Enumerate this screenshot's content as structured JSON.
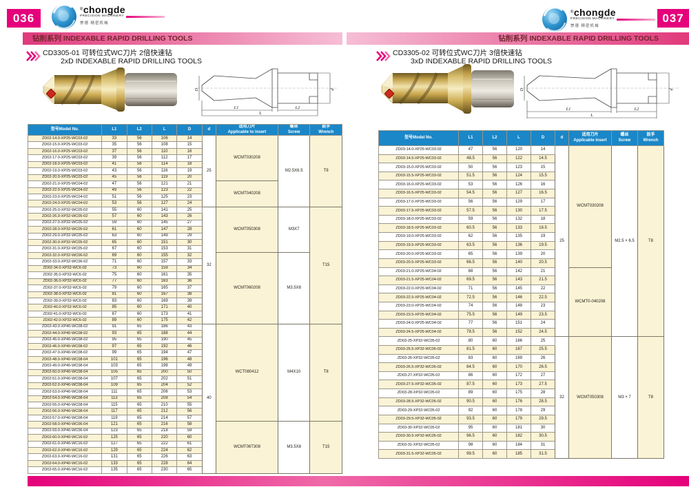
{
  "brand": {
    "name": "chongde",
    "reg": "®",
    "sub": "PRECISION MACHINERY",
    "zh": "崇德 精密机械"
  },
  "diagram": {
    "D": "D",
    "d": "d",
    "L1": "L1",
    "L2": "L2",
    "L": "L"
  },
  "colors": {
    "magenta": "#e5017b",
    "header_blue": "#1a87c8",
    "row_beige": "#fbf3d5"
  },
  "page_left": {
    "page_number": "036",
    "series_title": "钻削系列  INDEXABLE RAPID DRILLING TOOLS",
    "title_zh": "CD3305-01 可转位式WC刀片 2倍快速钻",
    "title_en": "2xD INDEXABLE  RAPID DRILLING TOOLS",
    "table": {
      "stripe": 0,
      "columns": [
        "型号Model No.",
        "L1",
        "L2",
        "L",
        "D",
        "d",
        "适用刀片|Applicable to insert",
        "螺丝|Screw",
        "扳手|Wrench"
      ],
      "rows": [
        [
          "ZD02-14.0-XP25-WC03-02",
          "33",
          "56",
          "106",
          "14"
        ],
        [
          "ZD02-15.0-XP25-WC03-02",
          "35",
          "56",
          "108",
          "15"
        ],
        [
          "ZD02-16.0-XP25-WC03-02",
          "37",
          "56",
          "110",
          "16"
        ],
        [
          "ZD02-17.0-XP25-WC03-02",
          "39",
          "56",
          "112",
          "17"
        ],
        [
          "ZD02-18.0-XP25-WC03-02",
          "41",
          "56",
          "114",
          "18"
        ],
        [
          "ZD02-19.0-XP25-WC03-02",
          "43",
          "56",
          "116",
          "19"
        ],
        [
          "ZD02-20.0-XP25-WC03-02",
          "45",
          "56",
          "119",
          "20"
        ],
        [
          "ZD02-21.0-XP25-WC04-02",
          "47",
          "56",
          "121",
          "21"
        ],
        [
          "ZD02-22.0-XP25-WC04-02",
          "49",
          "56",
          "123",
          "22"
        ],
        [
          "ZD02-23.0-XP25-WC04-02",
          "51",
          "56",
          "125",
          "23"
        ],
        [
          "ZD02-24.0-XP25-WC04-02",
          "53",
          "56",
          "127",
          "24"
        ],
        [
          "ZD02-25.0-XP32-WC05-02",
          "55",
          "60",
          "141",
          "25"
        ],
        [
          "ZD02-26.0-XP32-WC05-02",
          "57",
          "60",
          "143",
          "26"
        ],
        [
          "ZD02-27.0-XP32-WC05-02",
          "59",
          "60",
          "145",
          "27"
        ],
        [
          "ZD02-28.0-XP32-WC05-02",
          "61",
          "60",
          "147",
          "28"
        ],
        [
          "ZD02-29.0-XP32-WC05-02",
          "63",
          "60",
          "149",
          "29"
        ],
        [
          "ZD02-30.0-XP32-WC05-02",
          "65",
          "60",
          "151",
          "30"
        ],
        [
          "ZD02-31.0-XP32-WC05-02",
          "67",
          "60",
          "153",
          "31"
        ],
        [
          "ZD02-32.0-XP32-WC06-02",
          "69",
          "60",
          "155",
          "32"
        ],
        [
          "ZD02-33.0-XP32-WC06-02",
          "71",
          "60",
          "157",
          "33"
        ],
        [
          "ZD02-34.0-XP32-WC6-02",
          "73",
          "60",
          "159",
          "34"
        ],
        [
          "ZD02-35.0-XP32-WC6-02",
          "75",
          "60",
          "161",
          "35"
        ],
        [
          "ZD02-36.0-XP32-WC6-02",
          "77",
          "60",
          "163",
          "36"
        ],
        [
          "ZD02-37.0-XP32-WC6-02",
          "79",
          "60",
          "165",
          "37"
        ],
        [
          "ZD02-38.0-XP32-WC6-02",
          "81",
          "60",
          "167",
          "38"
        ],
        [
          "ZD02-39.0-XP32-WC6-02",
          "83",
          "60",
          "169",
          "39"
        ],
        [
          "ZD02-40.0-XP32-WC6-02",
          "85",
          "60",
          "171",
          "40"
        ],
        [
          "ZD02-41.0-XP32-WC6-02",
          "87",
          "60",
          "173",
          "41"
        ],
        [
          "ZD02-42.0-XP32-WC6-02",
          "89",
          "60",
          "175",
          "42"
        ],
        [
          "ZD02-43.0-XP40-WC08-02",
          "91",
          "65",
          "186",
          "43"
        ],
        [
          "ZD02-44.0-XP40-WC08-02",
          "93",
          "65",
          "188",
          "44"
        ],
        [
          "ZD02-45.0-XP40-WC08-02",
          "95",
          "65",
          "190",
          "45"
        ],
        [
          "ZD02-46.0-XP40-WC08-02",
          "97",
          "65",
          "192",
          "46"
        ],
        [
          "ZD02-47.0-XP40-WC08-02",
          "99",
          "65",
          "194",
          "47"
        ],
        [
          "ZD02-48.0-XP40-WC08-04",
          "101",
          "65",
          "196",
          "48"
        ],
        [
          "ZD02-49.0-XP40-WC08-04",
          "103",
          "65",
          "198",
          "49"
        ],
        [
          "ZD02-50.0-XP40-WC08-04",
          "105",
          "65",
          "200",
          "50"
        ],
        [
          "ZD02-51.0-XP40-WC08-04",
          "107",
          "65",
          "202",
          "51"
        ],
        [
          "ZD02-52.0-XP40-WC08-04",
          "109",
          "65",
          "204",
          "52"
        ],
        [
          "ZD02-53.0-XP40-WC08-04",
          "111",
          "65",
          "206",
          "53"
        ],
        [
          "ZD02-54.0-XP40-WC08-04",
          "113",
          "65",
          "208",
          "54"
        ],
        [
          "ZD02-55.0-XP40-WC08-04",
          "115",
          "65",
          "210",
          "55"
        ],
        [
          "ZD02-56.0-XP40-WC08-04",
          "117",
          "65",
          "212",
          "56"
        ],
        [
          "ZD02-57.0-XP40-WC08-04",
          "119",
          "65",
          "214",
          "57"
        ],
        [
          "ZD02-58.0-XP40-WC06-04",
          "121",
          "65",
          "216",
          "58"
        ],
        [
          "ZD02-59.0-XP40-WC06-04",
          "123",
          "65",
          "218",
          "59"
        ],
        [
          "ZD02-60.0-XP40-WC16-02",
          "125",
          "65",
          "220",
          "60"
        ],
        [
          "ZD02-61.0-XP40-WC16-02",
          "127",
          "65",
          "222",
          "61"
        ],
        [
          "ZD02-62.0-XP40-WC16-02",
          "129",
          "65",
          "224",
          "62"
        ],
        [
          "ZD02-63.0-XP40-WC16-02",
          "131",
          "65",
          "226",
          "63"
        ],
        [
          "ZD02-64.0-XP40-WC16-02",
          "133",
          "65",
          "228",
          "64"
        ],
        [
          "ZD02-65.0-XP40-WC16-02",
          "135",
          "65",
          "230",
          "65"
        ]
      ],
      "spans": {
        "shank_d": [
          {
            "start": 0,
            "count": 11,
            "text": "25"
          },
          {
            "start": 11,
            "count": 18,
            "text": "32"
          },
          {
            "start": 29,
            "count": 23,
            "text": "40"
          }
        ],
        "insert": [
          {
            "start": 0,
            "count": 7,
            "text": "WCMT030208"
          },
          {
            "start": 7,
            "count": 4,
            "text": "WCMT040208"
          },
          {
            "start": 11,
            "count": 7,
            "text": "WCMT050308"
          },
          {
            "start": 18,
            "count": 11,
            "text": "WCMT060208"
          },
          {
            "start": 29,
            "count": 15,
            "text": "WCT080412"
          },
          {
            "start": 44,
            "count": 8,
            "text": "WCMT06T308"
          }
        ],
        "screw": [
          {
            "start": 0,
            "count": 11,
            "text": "M2.5X6.5"
          },
          {
            "start": 11,
            "count": 7,
            "text": "M3X7"
          },
          {
            "start": 18,
            "count": 11,
            "text": "M3.5X8"
          },
          {
            "start": 29,
            "count": 15,
            "text": "M4X10"
          },
          {
            "start": 44,
            "count": 8,
            "text": "M3.5X8"
          }
        ],
        "wrench": [
          {
            "start": 0,
            "count": 11,
            "text": "T8"
          },
          {
            "start": 11,
            "count": 18,
            "text": "T15"
          },
          {
            "start": 29,
            "count": 15,
            "text": "T8"
          },
          {
            "start": 44,
            "count": 8,
            "text": "T15"
          }
        ]
      }
    }
  },
  "page_right": {
    "page_number": "037",
    "series_title": "钻削系列  INDEXABLE RAPID DRILLING TOOLS",
    "title_zh": "CD3305-02  可转位式WC刀片 3倍快速钻",
    "title_en": "3xD INDEXABLE  RAPID DRILLING TOOLS",
    "table": {
      "stripe": 1,
      "columns": [
        "型号Model No.",
        "L1",
        "L2",
        "L",
        "D",
        "d",
        "适用刀片|Applicable insert",
        "螺丝|Screw",
        "扳手|Wrench"
      ],
      "rows": [
        [
          "ZD03-14.0-XP25-WC03-02",
          "47",
          "56",
          "120",
          "14"
        ],
        [
          "ZD03-14.5-XP25-WC03-02",
          "48.5",
          "56",
          "122",
          "14.5"
        ],
        [
          "ZD03-15.0-XP25-WC03-02",
          "50",
          "56",
          "123",
          "15"
        ],
        [
          "ZD03-15.5-XP25-WC03-02",
          "51.5",
          "56",
          "124",
          "15.5"
        ],
        [
          "ZD03-16.0-XP25-WC03-02",
          "53",
          "56",
          "126",
          "16"
        ],
        [
          "ZD03-16.5-XP25-WC03-02",
          "54.5",
          "56",
          "127",
          "16.5"
        ],
        [
          "ZD03-17.0-XP25-WC03-02",
          "56",
          "56",
          "129",
          "17"
        ],
        [
          "ZD03-17.5-XP25-WC03-02",
          "57.5",
          "56",
          "130",
          "17.5"
        ],
        [
          "ZD03-18.0-XP25-WC03-02",
          "59",
          "56",
          "132",
          "18"
        ],
        [
          "ZD03-18.5-XP25-WC03-02",
          "60.5",
          "56",
          "133",
          "18.5"
        ],
        [
          "ZD03-19.0-XP25-WC03-02",
          "62",
          "56",
          "135",
          "19"
        ],
        [
          "ZD03-19.5-XP25-WC03-02",
          "63.5",
          "56",
          "136",
          "19.5"
        ],
        [
          "ZD03-20.0-XP25-WC03-02",
          "65",
          "56",
          "139",
          "20"
        ],
        [
          "ZD03-20.5-XP25-WC03-02",
          "66.5",
          "56",
          "140",
          "20.5"
        ],
        [
          "ZD03-21.0-XP25-WC04-02",
          "68",
          "56",
          "142",
          "21"
        ],
        [
          "ZD03-21.5-XP25-WC04-02",
          "69.5",
          "56",
          "143",
          "21.5"
        ],
        [
          "ZD03-22.0-XP25-WC04-02",
          "71",
          "56",
          "145",
          "22"
        ],
        [
          "ZD03-22.5-XP25-WC04-02",
          "72.5",
          "56",
          "146",
          "22.5"
        ],
        [
          "ZD03-23.0-XP25-WC04-02",
          "74",
          "56",
          "148",
          "23"
        ],
        [
          "ZD03-23.5-XP25-WC04-02",
          "75.5",
          "56",
          "149",
          "23.5"
        ],
        [
          "ZD03-24.0-XP25-WC04-02",
          "77",
          "56",
          "151",
          "24"
        ],
        [
          "ZD03-24.5-XP25-WC04-02",
          "78.5",
          "56",
          "152",
          "24.5"
        ],
        [
          "ZD03-25-XP32-WC05-02",
          "80",
          "60",
          "166",
          "25"
        ],
        [
          "ZD03-25.5-XP32-WC05-02",
          "81.5",
          "60",
          "167",
          "25.5"
        ],
        [
          "ZD03-26-XP32-WC05-02",
          "83",
          "60",
          "169",
          "26"
        ],
        [
          "ZD03-26.5-XP32-WC05-02",
          "84.5",
          "60",
          "170",
          "26.5"
        ],
        [
          "ZD03-27-XP32-WC05-02",
          "86",
          "60",
          "172",
          "27"
        ],
        [
          "ZD03-27.5-XP32-WC05-02",
          "87.5",
          "60",
          "173",
          "27.5"
        ],
        [
          "ZD03-28-XP32-WC05-02",
          "89",
          "60",
          "175",
          "28"
        ],
        [
          "ZD03-28.5-XP32-WC05-02",
          "90.5",
          "60",
          "176",
          "28.5"
        ],
        [
          "ZD03-29-XP32-WC05-02",
          "92",
          "60",
          "178",
          "29"
        ],
        [
          "ZD03-29.5-XP32-WC05-02",
          "93.5",
          "60",
          "179",
          "29.5"
        ],
        [
          "ZD03-30-XP32-WC05-02",
          "95",
          "60",
          "181",
          "30"
        ],
        [
          "ZD03-30.5-XP32-WC05-02",
          "96.5",
          "60",
          "182",
          "30.5"
        ],
        [
          "ZD03-31-XP32-WC05-02",
          "98",
          "60",
          "184",
          "31"
        ],
        [
          "ZD03-31.5-XP32-WC05-02",
          "99.5",
          "60",
          "185",
          "31.5"
        ]
      ],
      "spans": {
        "shank_d": [
          {
            "start": 0,
            "count": 22,
            "text": "25"
          },
          {
            "start": 22,
            "count": 14,
            "text": "32"
          }
        ],
        "insert": [
          {
            "start": 0,
            "count": 14,
            "text": "WCMT030208"
          },
          {
            "start": 14,
            "count": 8,
            "text": "WCMT0-040208"
          },
          {
            "start": 22,
            "count": 14,
            "text": "WCMT050308"
          }
        ],
        "screw": [
          {
            "start": 0,
            "count": 22,
            "text": "M2.5 × 6.5"
          },
          {
            "start": 22,
            "count": 14,
            "text": "M3 × 7"
          }
        ],
        "wrench": [
          {
            "start": 0,
            "count": 22,
            "text": "T8"
          },
          {
            "start": 22,
            "count": 14,
            "text": "T8"
          }
        ]
      }
    }
  }
}
